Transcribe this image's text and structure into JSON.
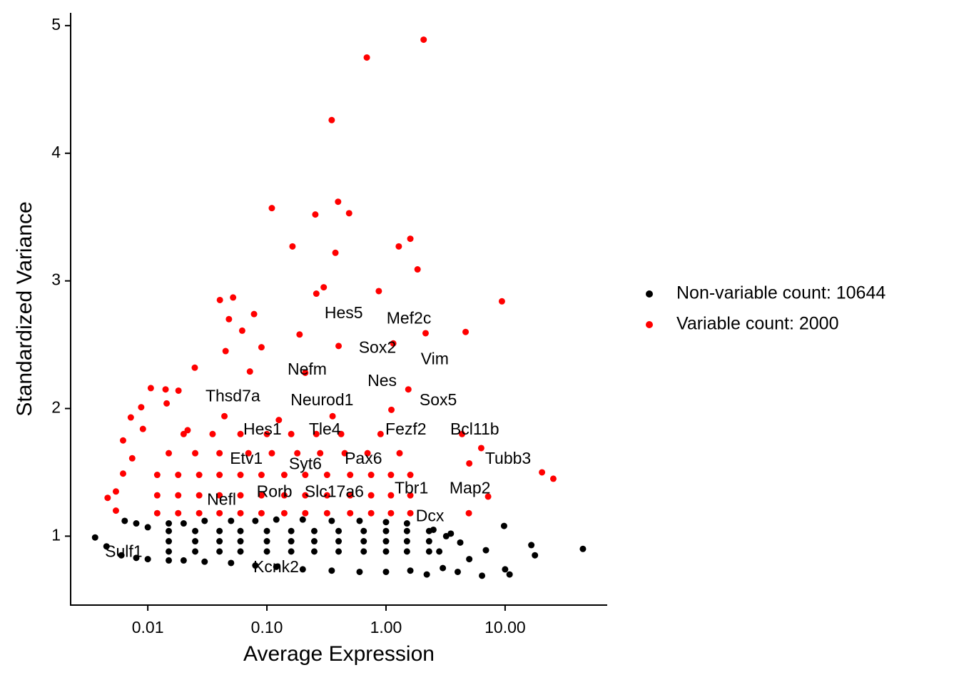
{
  "chart_data": {
    "type": "scatter",
    "x_label": "Average Expression",
    "y_label": "Standardized Variance",
    "xscale": "log",
    "xlim": [
      0.00225,
      72
    ],
    "ylim": [
      0.46,
      5.1
    ],
    "xticks": [
      {
        "value": 0.01,
        "label": "0.01"
      },
      {
        "value": 0.1,
        "label": "0.10"
      },
      {
        "value": 1,
        "label": "1.00"
      },
      {
        "value": 10,
        "label": "10.00"
      }
    ],
    "yticks": [
      1,
      2,
      3,
      4,
      5
    ],
    "grid": false,
    "legend": "right",
    "series": [
      {
        "name": "Non-variable count: 10644",
        "color": "#000000",
        "x": [
          0.00361,
          0.0045,
          0.0064,
          0.006,
          0.008,
          0.01,
          0.015,
          0.02,
          0.03,
          0.05,
          0.08,
          0.12,
          0.2,
          0.35,
          0.6,
          1.0,
          1.6,
          2.2,
          3,
          4,
          0.008,
          0.01,
          0.015,
          0.02,
          0.03,
          0.05,
          0.08,
          0.12,
          0.2,
          0.35,
          0.6,
          1.0,
          1.5,
          2.5,
          3.5,
          0.015,
          0.025,
          0.04,
          0.06,
          0.1,
          0.16,
          0.25,
          0.4,
          0.65,
          1.0,
          1.5,
          2.3,
          0.015,
          0.025,
          0.04,
          0.06,
          0.1,
          0.16,
          0.25,
          0.4,
          0.65,
          1.0,
          1.5,
          2.3,
          0.015,
          0.025,
          0.04,
          0.06,
          0.1,
          0.16,
          0.25,
          0.4,
          0.65,
          1.0,
          1.5,
          2.3,
          9.8,
          16.6,
          17.8,
          45,
          10,
          10.9,
          6.4,
          6.9,
          5.0,
          4.2,
          3.2,
          2.8
        ],
        "y": [
          0.99,
          0.92,
          1.12,
          0.85,
          0.83,
          0.82,
          0.81,
          0.81,
          0.8,
          0.79,
          0.77,
          0.76,
          0.74,
          0.73,
          0.72,
          0.72,
          0.73,
          0.7,
          0.75,
          0.72,
          1.1,
          1.07,
          1.1,
          1.1,
          1.12,
          1.12,
          1.12,
          1.13,
          1.13,
          1.12,
          1.12,
          1.11,
          1.1,
          1.05,
          1.02,
          0.88,
          0.88,
          0.88,
          0.88,
          0.88,
          0.88,
          0.88,
          0.88,
          0.88,
          0.88,
          0.88,
          0.88,
          0.96,
          0.96,
          0.96,
          0.96,
          0.96,
          0.96,
          0.96,
          0.96,
          0.96,
          0.96,
          0.96,
          0.96,
          1.04,
          1.04,
          1.04,
          1.04,
          1.04,
          1.04,
          1.04,
          1.04,
          1.04,
          1.04,
          1.04,
          1.04,
          1.08,
          0.93,
          0.85,
          0.9,
          0.74,
          0.7,
          0.69,
          0.89,
          0.82,
          0.95,
          1.0,
          0.88
        ]
      },
      {
        "name": "Variable count: 2000",
        "color": "#ff0000",
        "x": [
          2.07,
          0.69,
          0.35,
          0.396,
          0.11,
          0.255,
          0.49,
          1.6,
          1.28,
          0.164,
          0.376,
          1.84,
          9.4,
          0.3,
          0.87,
          0.26,
          0.0403,
          0.052,
          0.078,
          0.048,
          4.66,
          2.15,
          0.062,
          0.188,
          1.15,
          0.045,
          0.09,
          0.4,
          0.0248,
          0.072,
          0.21,
          1.54,
          0.0106,
          0.0141,
          0.0181,
          0.0088,
          0.0144,
          0.0072,
          0.0091,
          0.0216,
          0.044,
          0.126,
          0.356,
          1.11,
          4.35,
          5.0,
          6.3,
          20.4,
          25.4,
          7.2,
          4.96,
          0.0046,
          0.0054,
          0.0054,
          0.0062,
          0.0062,
          0.0074,
          0.012,
          0.018,
          0.027,
          0.04,
          0.06,
          0.09,
          0.14,
          0.21,
          0.32,
          0.5,
          0.75,
          1.1,
          1.6,
          0.012,
          0.018,
          0.027,
          0.04,
          0.06,
          0.09,
          0.14,
          0.21,
          0.32,
          0.5,
          0.75,
          1.1,
          1.6,
          0.012,
          0.018,
          0.027,
          0.04,
          0.06,
          0.09,
          0.14,
          0.21,
          0.32,
          0.5,
          0.75,
          1.1,
          1.6,
          0.015,
          0.025,
          0.04,
          0.07,
          0.11,
          0.18,
          0.28,
          0.45,
          0.7,
          1.3,
          0.02,
          0.035,
          0.06,
          0.1,
          0.16,
          0.26,
          0.42,
          0.9
        ],
        "y": [
          4.89,
          4.75,
          4.26,
          3.62,
          3.57,
          3.52,
          3.53,
          3.33,
          3.27,
          3.27,
          3.22,
          3.09,
          2.84,
          2.95,
          2.92,
          2.9,
          2.85,
          2.87,
          2.74,
          2.7,
          2.6,
          2.59,
          2.61,
          2.58,
          2.51,
          2.45,
          2.48,
          2.49,
          2.32,
          2.29,
          2.28,
          2.15,
          2.16,
          2.15,
          2.14,
          2.01,
          2.04,
          1.93,
          1.84,
          1.83,
          1.94,
          1.91,
          1.94,
          1.99,
          1.8,
          1.57,
          1.69,
          1.5,
          1.45,
          1.31,
          1.18,
          1.3,
          1.35,
          1.2,
          1.75,
          1.49,
          1.61,
          1.18,
          1.18,
          1.18,
          1.18,
          1.18,
          1.18,
          1.18,
          1.18,
          1.18,
          1.18,
          1.18,
          1.18,
          1.18,
          1.32,
          1.32,
          1.32,
          1.32,
          1.32,
          1.32,
          1.32,
          1.32,
          1.32,
          1.32,
          1.32,
          1.32,
          1.32,
          1.48,
          1.48,
          1.48,
          1.48,
          1.48,
          1.48,
          1.48,
          1.48,
          1.48,
          1.48,
          1.48,
          1.48,
          1.48,
          1.65,
          1.65,
          1.65,
          1.65,
          1.65,
          1.65,
          1.65,
          1.65,
          1.65,
          1.65,
          1.8,
          1.8,
          1.8,
          1.8,
          1.8,
          1.8,
          1.8,
          1.8
        ]
      }
    ],
    "annotations": [
      {
        "text": "Hes5",
        "x": 0.305,
        "y": 2.74
      },
      {
        "text": "Mef2c",
        "x": 1.01,
        "y": 2.7
      },
      {
        "text": "Sox2",
        "x": 0.59,
        "y": 2.47
      },
      {
        "text": "Vim",
        "x": 1.96,
        "y": 2.38
      },
      {
        "text": "Nefm",
        "x": 0.149,
        "y": 2.3
      },
      {
        "text": "Nes",
        "x": 0.7,
        "y": 2.21
      },
      {
        "text": "Thsd7a",
        "x": 0.0305,
        "y": 2.09
      },
      {
        "text": "Neurod1",
        "x": 0.158,
        "y": 2.06
      },
      {
        "text": "Sox5",
        "x": 1.91,
        "y": 2.06
      },
      {
        "text": "Hes1",
        "x": 0.0634,
        "y": 1.83
      },
      {
        "text": "Tle4",
        "x": 0.225,
        "y": 1.83
      },
      {
        "text": "Fezf2",
        "x": 0.987,
        "y": 1.83
      },
      {
        "text": "Bcl11b",
        "x": 3.46,
        "y": 1.83
      },
      {
        "text": "Tubb3",
        "x": 6.79,
        "y": 1.6
      },
      {
        "text": "Etv1",
        "x": 0.0489,
        "y": 1.6
      },
      {
        "text": "Pax6",
        "x": 0.45,
        "y": 1.6
      },
      {
        "text": "Syt6",
        "x": 0.153,
        "y": 1.56
      },
      {
        "text": "Tbr1",
        "x": 1.18,
        "y": 1.37
      },
      {
        "text": "Map2",
        "x": 3.41,
        "y": 1.37
      },
      {
        "text": "Rorb",
        "x": 0.082,
        "y": 1.34
      },
      {
        "text": "Slc17a6",
        "x": 0.207,
        "y": 1.34
      },
      {
        "text": "Nefl",
        "x": 0.0314,
        "y": 1.28
      },
      {
        "text": "Dcx",
        "x": 1.78,
        "y": 1.15
      },
      {
        "text": "Sulf1",
        "x": 0.00437,
        "y": 0.87
      },
      {
        "text": "Kcnk2",
        "x": 0.0769,
        "y": 0.75
      }
    ]
  }
}
